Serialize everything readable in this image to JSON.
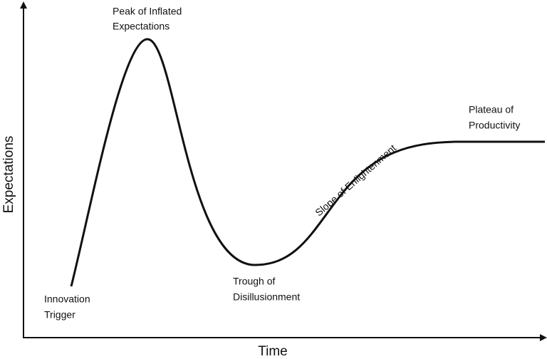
{
  "axes": {
    "y_label": "Expectations",
    "x_label": "Time"
  },
  "phases": [
    {
      "lines": [
        "Innovation",
        "Trigger"
      ]
    },
    {
      "lines": [
        "Peak of Inflated",
        "Expectations"
      ]
    },
    {
      "lines": [
        "Trough of",
        "Disillusionment"
      ]
    },
    {
      "lines": [
        "Slope of Enlightenment"
      ]
    },
    {
      "lines": [
        "Plateau of",
        "Productivity"
      ]
    }
  ]
}
